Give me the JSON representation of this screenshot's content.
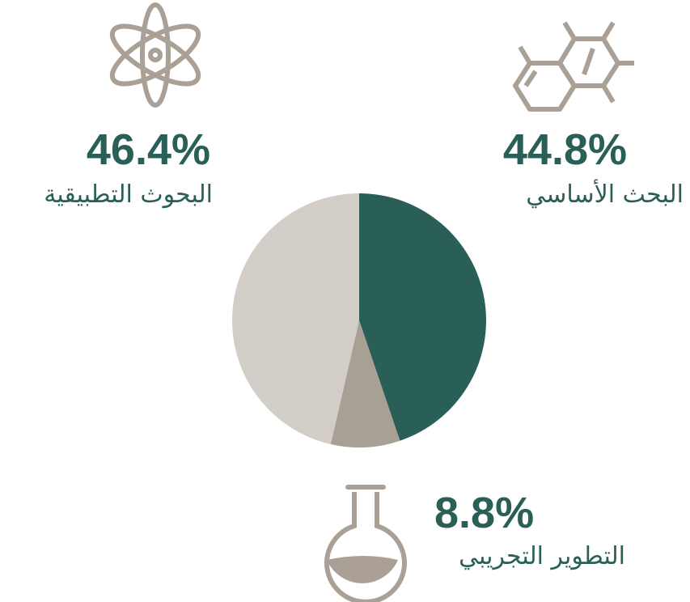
{
  "chart_data": {
    "type": "pie",
    "categories": [
      "البحث الأساسي",
      "التطوير التجريبي",
      "البحوث التطبيقية"
    ],
    "values": [
      44.8,
      8.8,
      46.4
    ],
    "value_labels": [
      "44.8%",
      "8.8%",
      "46.4%"
    ],
    "colors": [
      "#2a5f58",
      "#a89f95",
      "#d3cdc8"
    ]
  }
}
